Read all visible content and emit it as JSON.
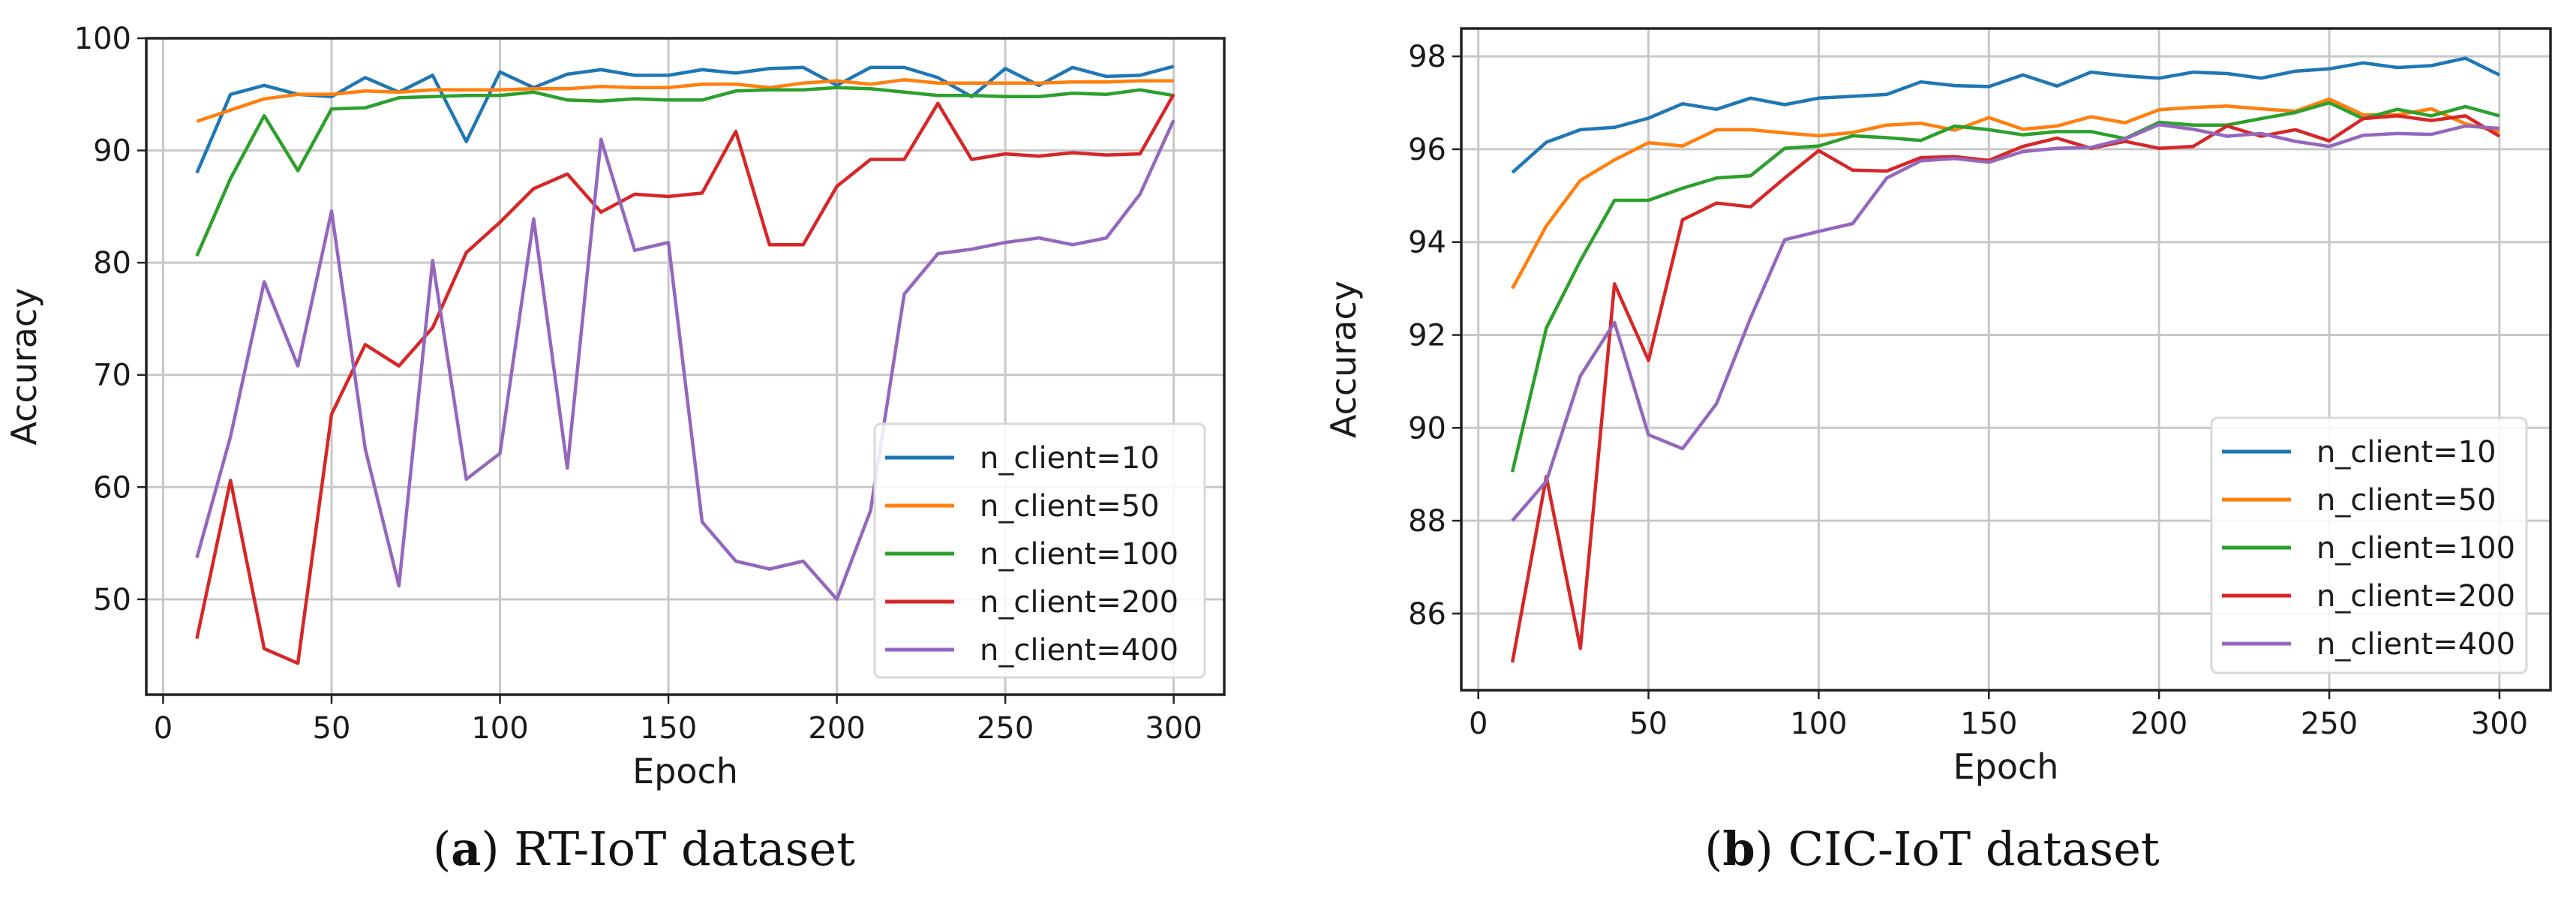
{
  "figure": {
    "captions": [
      {
        "letter": "a",
        "text": "RT-IoT dataset"
      },
      {
        "letter": "b",
        "text": "CIC-IoT dataset"
      }
    ]
  },
  "chart_data": [
    {
      "type": "line",
      "title": "(a) RT-IoT dataset",
      "xlabel": "Epoch",
      "ylabel": "Accuracy",
      "xlim": [
        -5,
        315
      ],
      "ylim": [
        41.5,
        100
      ],
      "xticks": [
        0,
        50,
        100,
        150,
        200,
        250,
        300
      ],
      "yticks": [
        50,
        60,
        70,
        80,
        90,
        100
      ],
      "grid": true,
      "legend_position": "lower right",
      "x": [
        10,
        20,
        30,
        40,
        50,
        60,
        70,
        80,
        90,
        100,
        110,
        120,
        130,
        140,
        150,
        160,
        170,
        180,
        190,
        200,
        210,
        220,
        230,
        240,
        250,
        260,
        270,
        280,
        290,
        300
      ],
      "series": [
        {
          "name": "n_client=10",
          "color": "#1f77b4",
          "values": [
            88,
            95,
            95.8,
            95,
            94.8,
            96.5,
            95.2,
            96.7,
            90.8,
            97,
            95.6,
            96.8,
            97.2,
            96.7,
            96.7,
            97.2,
            96.9,
            97.3,
            97.4,
            95.8,
            97.4,
            97.4,
            96.5,
            94.8,
            97.3,
            95.8,
            97.4,
            96.6,
            96.7,
            97.5
          ]
        },
        {
          "name": "n_client=50",
          "color": "#ff7f0e",
          "values": [
            92.6,
            93.6,
            94.6,
            95,
            95,
            95.3,
            95.2,
            95.4,
            95.4,
            95.4,
            95.5,
            95.5,
            95.7,
            95.6,
            95.6,
            95.9,
            95.9,
            95.6,
            96,
            96.2,
            95.9,
            96.3,
            96,
            96,
            96,
            96,
            96.1,
            96.1,
            96.2,
            96.2
          ]
        },
        {
          "name": "n_client=100",
          "color": "#2ca02c",
          "values": [
            80.6,
            87.5,
            93.1,
            88.2,
            93.7,
            93.8,
            94.7,
            94.8,
            94.9,
            94.9,
            95.2,
            94.5,
            94.4,
            94.6,
            94.5,
            94.5,
            95.3,
            95.4,
            95.4,
            95.6,
            95.5,
            95.2,
            94.9,
            94.9,
            94.8,
            94.8,
            95.1,
            95,
            95.4,
            94.9
          ]
        },
        {
          "name": "n_client=200",
          "color": "#d62728",
          "values": [
            46.5,
            60.6,
            45.6,
            44.3,
            66.5,
            72.7,
            70.8,
            74.2,
            80.9,
            83.6,
            86.6,
            87.9,
            84.5,
            86.1,
            85.9,
            86.2,
            91.7,
            81.6,
            81.6,
            86.8,
            89.2,
            89.2,
            94.2,
            89.2,
            89.7,
            89.5,
            89.8,
            89.6,
            89.7,
            95
          ]
        },
        {
          "name": "n_client=400",
          "color": "#9467bd",
          "values": [
            53.7,
            64.5,
            78.3,
            70.8,
            84.6,
            63.4,
            51.2,
            80.2,
            60.7,
            63,
            83.9,
            61.7,
            91,
            81.1,
            81.8,
            56.9,
            53.4,
            52.7,
            53.4,
            50,
            57.9,
            77.2,
            80.8,
            81.2,
            81.8,
            82.2,
            81.6,
            82.2,
            86.1,
            92.7
          ]
        }
      ]
    },
    {
      "type": "line",
      "title": "(b) CIC-IoT dataset",
      "xlabel": "Epoch",
      "ylabel": "Accuracy",
      "xlim": [
        -5,
        315
      ],
      "ylim": [
        84.35,
        98.6
      ],
      "xticks": [
        0,
        50,
        100,
        150,
        200,
        250,
        300
      ],
      "yticks": [
        86,
        88,
        90,
        92,
        94,
        96,
        98
      ],
      "grid": true,
      "legend_position": "lower right",
      "x": [
        10,
        20,
        30,
        40,
        50,
        60,
        70,
        80,
        90,
        100,
        110,
        120,
        130,
        140,
        150,
        160,
        170,
        180,
        190,
        200,
        210,
        220,
        230,
        240,
        250,
        260,
        270,
        280,
        290,
        300
      ],
      "series": [
        {
          "name": "n_client=10",
          "color": "#1f77b4",
          "values": [
            95.5,
            96.15,
            96.42,
            96.47,
            96.67,
            96.98,
            96.86,
            97.1,
            96.96,
            97.1,
            97.14,
            97.18,
            97.45,
            97.37,
            97.35,
            97.6,
            97.36,
            97.66,
            97.58,
            97.53,
            97.66,
            97.63,
            97.53,
            97.68,
            97.73,
            97.86,
            97.76,
            97.8,
            97.96,
            97.6
          ]
        },
        {
          "name": "n_client=50",
          "color": "#ff7f0e",
          "values": [
            93.0,
            94.35,
            95.33,
            95.77,
            96.14,
            96.07,
            96.42,
            96.42,
            96.35,
            96.29,
            96.36,
            96.52,
            96.56,
            96.41,
            96.68,
            96.43,
            96.5,
            96.7,
            96.57,
            96.85,
            96.9,
            96.93,
            96.87,
            96.82,
            97.08,
            96.74,
            96.74,
            96.87,
            96.55,
            96.38
          ]
        },
        {
          "name": "n_client=100",
          "color": "#2ca02c",
          "values": [
            89.05,
            92.15,
            93.6,
            94.9,
            94.9,
            95.16,
            95.38,
            95.43,
            96.02,
            96.07,
            96.29,
            96.25,
            96.19,
            96.5,
            96.42,
            96.31,
            96.38,
            96.38,
            96.23,
            96.58,
            96.52,
            96.52,
            96.66,
            96.79,
            97.0,
            96.66,
            96.86,
            96.72,
            96.92,
            96.72
          ]
        },
        {
          "name": "n_client=200",
          "color": "#d62728",
          "values": [
            84.95,
            88.95,
            85.25,
            93.1,
            91.45,
            94.48,
            94.84,
            94.76,
            95.38,
            95.97,
            95.55,
            95.53,
            95.82,
            95.84,
            95.76,
            96.06,
            96.24,
            96.02,
            96.17,
            96.02,
            96.06,
            96.5,
            96.28,
            96.42,
            96.18,
            96.66,
            96.72,
            96.62,
            96.72,
            96.28
          ]
        },
        {
          "name": "n_client=400",
          "color": "#9467bd",
          "values": [
            88.0,
            88.85,
            91.12,
            92.27,
            89.85,
            89.55,
            90.52,
            92.37,
            94.05,
            94.23,
            94.4,
            95.38,
            95.75,
            95.8,
            95.72,
            95.95,
            96.02,
            96.04,
            96.22,
            96.53,
            96.43,
            96.28,
            96.34,
            96.17,
            96.06,
            96.3,
            96.34,
            96.32,
            96.5,
            96.45
          ]
        }
      ]
    }
  ]
}
